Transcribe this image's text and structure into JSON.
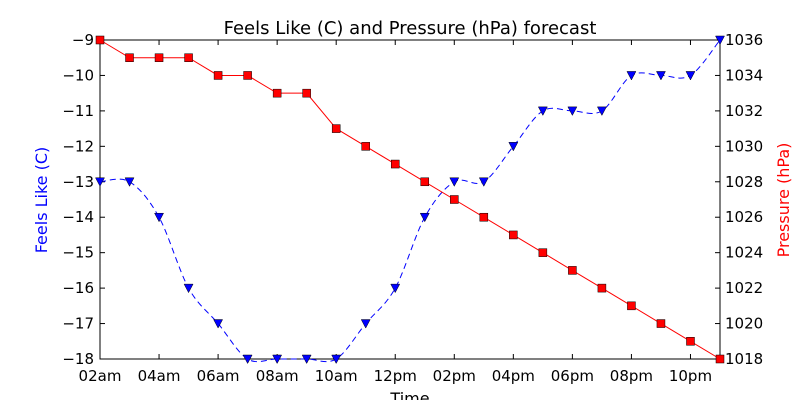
{
  "chart_data": {
    "type": "line",
    "title": "Feels Like (C) and Pressure (hPa) forecast",
    "xlabel": "Time",
    "x_ticks": [
      "02am",
      "04am",
      "06am",
      "08am",
      "10am",
      "12pm",
      "02pm",
      "04pm",
      "06pm",
      "08pm",
      "10pm"
    ],
    "x_hours": [
      2,
      3,
      4,
      5,
      6,
      7,
      8,
      9,
      10,
      11,
      12,
      13,
      14,
      15,
      16,
      17,
      18,
      19,
      20,
      21,
      22,
      23
    ],
    "xlim": [
      2,
      23
    ],
    "grid": false,
    "series": [
      {
        "name": "Feels Like (C)",
        "axis": "left",
        "color": "#0000ff",
        "line_style": "dashed",
        "marker": "triangle-down",
        "values": [
          -13,
          -13,
          -14,
          -16,
          -17,
          -18,
          -18,
          -18,
          -18,
          -17,
          -16,
          -14,
          -13,
          -13,
          -12,
          -11,
          -11,
          -11,
          -10,
          -10,
          -10,
          -9
        ]
      },
      {
        "name": "Pressure (hPa)",
        "axis": "right",
        "color": "#ff0000",
        "line_style": "solid",
        "marker": "square",
        "values": [
          1036,
          1035,
          1035,
          1035,
          1034,
          1034,
          1033,
          1033,
          1031,
          1030,
          1029,
          1028,
          1027,
          1026,
          1025,
          1024,
          1023,
          1022,
          1021,
          1020,
          1019,
          1018
        ]
      }
    ],
    "y_left": {
      "label": "Feels Like (C)",
      "color": "#0000ff",
      "lim": [
        -18,
        -9
      ],
      "ticks": [
        -18,
        -17,
        -16,
        -15,
        -14,
        -13,
        -12,
        -11,
        -10,
        -9
      ],
      "tick_labels": [
        "−18",
        "−17",
        "−16",
        "−15",
        "−14",
        "−13",
        "−12",
        "−11",
        "−10",
        "−9"
      ]
    },
    "y_right": {
      "label": "Pressure (hPa)",
      "color": "#ff0000",
      "lim": [
        1018,
        1036
      ],
      "ticks": [
        1018,
        1020,
        1022,
        1024,
        1026,
        1028,
        1030,
        1032,
        1034,
        1036
      ],
      "tick_labels": [
        "1018",
        "1020",
        "1022",
        "1024",
        "1026",
        "1028",
        "1030",
        "1032",
        "1034",
        "1036"
      ]
    }
  }
}
